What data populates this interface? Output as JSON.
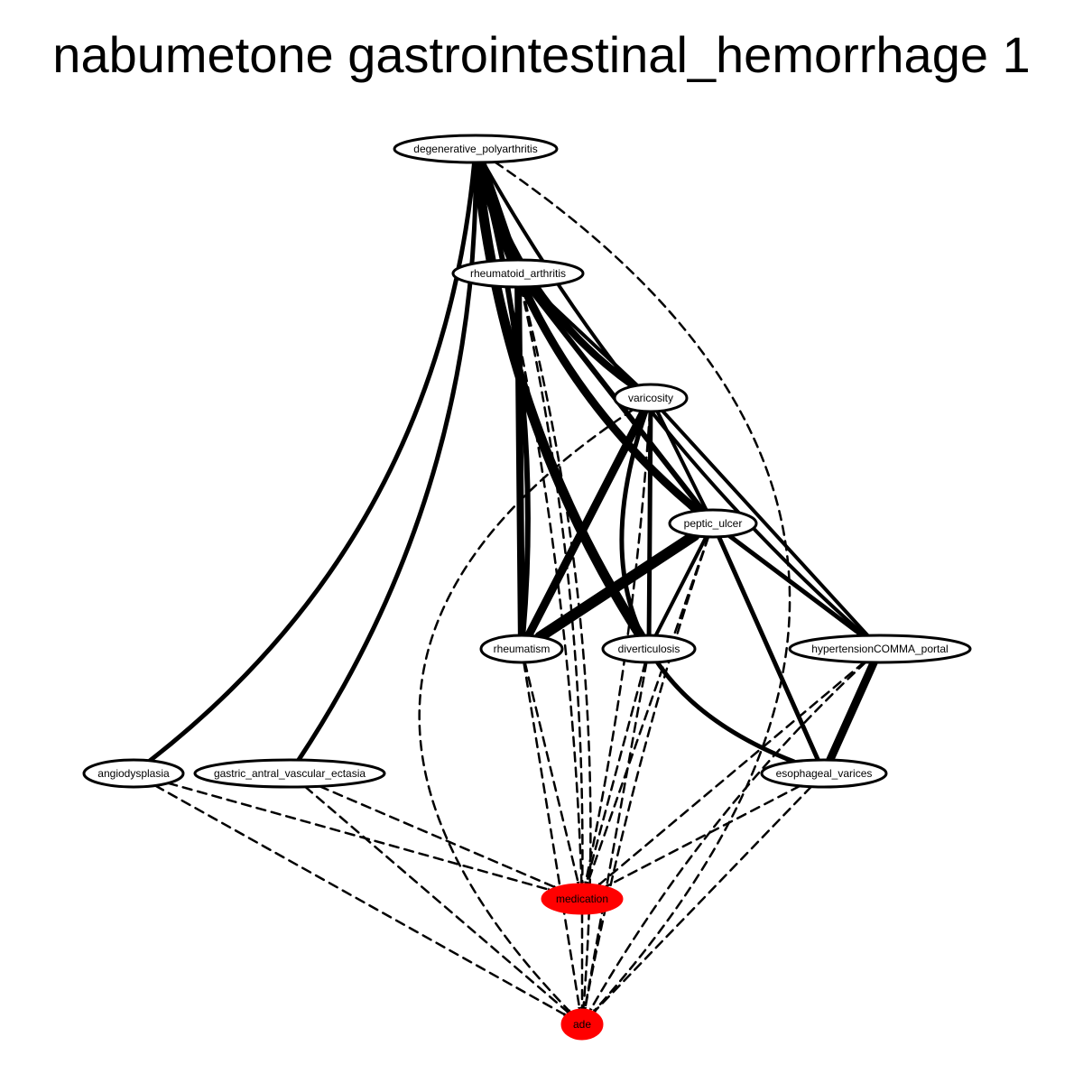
{
  "title": "nabumetone gastrointestinal_hemorrhage 1",
  "colors": {
    "highlight": "#ff0000",
    "node_fill": "#ffffff",
    "stroke": "#000000"
  },
  "nodes": [
    {
      "id": "degenerative_polyarthritis",
      "label": "degenerative_polyarthritis",
      "highlight": false
    },
    {
      "id": "rheumatoid_arthritis",
      "label": "rheumatoid_arthritis",
      "highlight": false
    },
    {
      "id": "varicosity",
      "label": "varicosity",
      "highlight": false
    },
    {
      "id": "peptic_ulcer",
      "label": "peptic_ulcer",
      "highlight": false
    },
    {
      "id": "rheumatism",
      "label": "rheumatism",
      "highlight": false
    },
    {
      "id": "diverticulosis",
      "label": "diverticulosis",
      "highlight": false
    },
    {
      "id": "hypertensionCOMMA_portal",
      "label": "hypertensionCOMMA_portal",
      "highlight": false
    },
    {
      "id": "angiodysplasia",
      "label": "angiodysplasia",
      "highlight": false
    },
    {
      "id": "gastric_antral_vascular_ectasia",
      "label": "gastric_antral_vascular_ectasia",
      "highlight": false
    },
    {
      "id": "esophageal_varices",
      "label": "esophageal_varices",
      "highlight": false
    },
    {
      "id": "medication",
      "label": "medication",
      "highlight": true
    },
    {
      "id": "ade",
      "label": "ade",
      "highlight": true
    }
  ],
  "edges": [
    {
      "from": "degenerative_polyarthritis",
      "to": "rheumatoid_arthritis",
      "style": "solid",
      "weight": 12
    },
    {
      "from": "degenerative_polyarthritis",
      "to": "varicosity",
      "style": "solid",
      "weight": 8
    },
    {
      "from": "degenerative_polyarthritis",
      "to": "peptic_ulcer",
      "style": "solid",
      "weight": 9
    },
    {
      "from": "degenerative_polyarthritis",
      "to": "diverticulosis",
      "style": "solid",
      "weight": 11
    },
    {
      "from": "degenerative_polyarthritis",
      "to": "rheumatism",
      "style": "solid",
      "weight": 6
    },
    {
      "from": "degenerative_polyarthritis",
      "to": "hypertensionCOMMA_portal",
      "style": "solid",
      "weight": 4
    },
    {
      "from": "degenerative_polyarthritis",
      "to": "angiodysplasia",
      "style": "solid",
      "weight": 5
    },
    {
      "from": "degenerative_polyarthritis",
      "to": "gastric_antral_vascular_ectasia",
      "style": "solid",
      "weight": 5
    },
    {
      "from": "degenerative_polyarthritis",
      "to": "medication",
      "style": "dashed",
      "weight": 2
    },
    {
      "from": "degenerative_polyarthritis",
      "to": "ade",
      "style": "dashed",
      "weight": 2
    },
    {
      "from": "rheumatoid_arthritis",
      "to": "rheumatism",
      "style": "solid",
      "weight": 8
    },
    {
      "from": "rheumatoid_arthritis",
      "to": "varicosity",
      "style": "solid",
      "weight": 4
    },
    {
      "from": "rheumatoid_arthritis",
      "to": "peptic_ulcer",
      "style": "solid",
      "weight": 6
    },
    {
      "from": "rheumatoid_arthritis",
      "to": "medication",
      "style": "dashed",
      "weight": 2
    },
    {
      "from": "rheumatoid_arthritis",
      "to": "ade",
      "style": "dashed",
      "weight": 2
    },
    {
      "from": "varicosity",
      "to": "rheumatism",
      "style": "solid",
      "weight": 9
    },
    {
      "from": "varicosity",
      "to": "diverticulosis",
      "style": "solid",
      "weight": 5
    },
    {
      "from": "varicosity",
      "to": "peptic_ulcer",
      "style": "solid",
      "weight": 4
    },
    {
      "from": "varicosity",
      "to": "hypertensionCOMMA_portal",
      "style": "solid",
      "weight": 4
    },
    {
      "from": "varicosity",
      "to": "esophageal_varices",
      "style": "solid",
      "weight": 5
    },
    {
      "from": "varicosity",
      "to": "medication",
      "style": "dashed",
      "weight": 2
    },
    {
      "from": "varicosity",
      "to": "ade",
      "style": "dashed",
      "weight": 2
    },
    {
      "from": "peptic_ulcer",
      "to": "rheumatism",
      "style": "solid",
      "weight": 12
    },
    {
      "from": "peptic_ulcer",
      "to": "diverticulosis",
      "style": "solid",
      "weight": 4
    },
    {
      "from": "peptic_ulcer",
      "to": "hypertensionCOMMA_portal",
      "style": "solid",
      "weight": 5
    },
    {
      "from": "peptic_ulcer",
      "to": "esophageal_varices",
      "style": "solid",
      "weight": 5
    },
    {
      "from": "peptic_ulcer",
      "to": "medication",
      "style": "dashed",
      "weight": 2
    },
    {
      "from": "peptic_ulcer",
      "to": "ade",
      "style": "dashed",
      "weight": 2
    },
    {
      "from": "hypertensionCOMMA_portal",
      "to": "esophageal_varices",
      "style": "solid",
      "weight": 9
    },
    {
      "from": "hypertensionCOMMA_portal",
      "to": "medication",
      "style": "dashed",
      "weight": 2
    },
    {
      "from": "hypertensionCOMMA_portal",
      "to": "ade",
      "style": "dashed",
      "weight": 2
    },
    {
      "from": "rheumatism",
      "to": "medication",
      "style": "dashed",
      "weight": 2
    },
    {
      "from": "rheumatism",
      "to": "ade",
      "style": "dashed",
      "weight": 2
    },
    {
      "from": "diverticulosis",
      "to": "medication",
      "style": "dashed",
      "weight": 2
    },
    {
      "from": "diverticulosis",
      "to": "ade",
      "style": "dashed",
      "weight": 2
    },
    {
      "from": "angiodysplasia",
      "to": "medication",
      "style": "dashed",
      "weight": 2
    },
    {
      "from": "angiodysplasia",
      "to": "ade",
      "style": "dashed",
      "weight": 2
    },
    {
      "from": "gastric_antral_vascular_ectasia",
      "to": "medication",
      "style": "dashed",
      "weight": 2
    },
    {
      "from": "gastric_antral_vascular_ectasia",
      "to": "ade",
      "style": "dashed",
      "weight": 2
    },
    {
      "from": "esophageal_varices",
      "to": "medication",
      "style": "dashed",
      "weight": 2
    },
    {
      "from": "esophageal_varices",
      "to": "ade",
      "style": "dashed",
      "weight": 2
    },
    {
      "from": "medication",
      "to": "ade",
      "style": "dashed",
      "weight": 2
    }
  ]
}
